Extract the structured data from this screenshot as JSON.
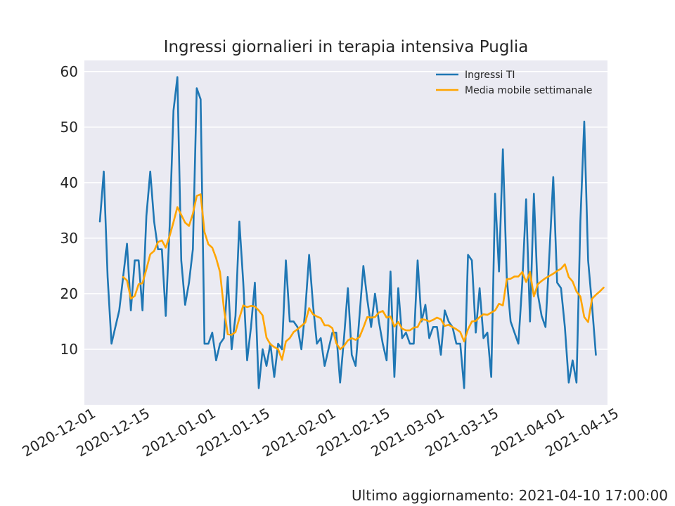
{
  "chart_data": {
    "type": "line",
    "title": "Ingressi giornalieri in terapia intensiva Puglia",
    "xlabel": "",
    "ylabel": "",
    "xlim": [
      "2020-12-01",
      "2021-04-15"
    ],
    "ylim": [
      0,
      62
    ],
    "x_ticks": [
      "2020-12-01",
      "2020-12-15",
      "2021-01-01",
      "2021-01-15",
      "2021-02-01",
      "2021-02-15",
      "2021-03-01",
      "2021-03-15",
      "2021-04-01",
      "2021-04-15"
    ],
    "y_ticks": [
      10,
      20,
      30,
      40,
      50,
      60
    ],
    "grid": true,
    "legend_position": "top-right",
    "series": [
      {
        "name": "Ingressi TI",
        "color": "#1f77b4",
        "start_date": "2020-12-05",
        "values": [
          33,
          42,
          23,
          11,
          14,
          17,
          23,
          29,
          17,
          26,
          26,
          17,
          34,
          42,
          33,
          28,
          28,
          16,
          32,
          53,
          59,
          26,
          18,
          22,
          28,
          57,
          55,
          11,
          11,
          13,
          8,
          11,
          12,
          23,
          10,
          16,
          33,
          22,
          8,
          14,
          22,
          3,
          10,
          7,
          11,
          5,
          11,
          10,
          26,
          15,
          15,
          14,
          10,
          17,
          27,
          18,
          11,
          12,
          7,
          10,
          13,
          13,
          4,
          12,
          21,
          9,
          7,
          16,
          25,
          19,
          14,
          20,
          15,
          11,
          8,
          24,
          5,
          21,
          12,
          13,
          11,
          11,
          26,
          15,
          18,
          12,
          14,
          14,
          9,
          17,
          15,
          14,
          11,
          11,
          3,
          27,
          26,
          13,
          21,
          12,
          13,
          5,
          38,
          24,
          46,
          23,
          15,
          13,
          11,
          22,
          37,
          15,
          38,
          20,
          16,
          14,
          27,
          41,
          22,
          21,
          14,
          4,
          8,
          4,
          33,
          51,
          26,
          18,
          9
        ]
      },
      {
        "name": "Media mobile settimanale",
        "color": "#ffa500",
        "start_date": "2020-12-11",
        "values": [
          23,
          22.4,
          19.1,
          19.6,
          21.7,
          21.9,
          24.4,
          27.1,
          27.7,
          29.3,
          29.6,
          28.3,
          30.4,
          32.9,
          35.6,
          34.2,
          32.8,
          32.2,
          34.4,
          37.6,
          37.9,
          31.1,
          28.9,
          28.3,
          26.4,
          23.9,
          17.4,
          12.7,
          12.6,
          13.1,
          15.6,
          17.9,
          17.6,
          17.8,
          17.7,
          17.0,
          16.1,
          12.1,
          10.9,
          10.4,
          10.0,
          8.1,
          11.4,
          12.0,
          13.1,
          13.6,
          14.2,
          14.8,
          17.4,
          16.3,
          15.9,
          15.6,
          14.3,
          14.3,
          13.8,
          11.1,
          10.0,
          10.6,
          11.6,
          12.0,
          11.7,
          12.2,
          13.9,
          15.8,
          15.7,
          15.8,
          16.6,
          16.9,
          15.7,
          15.9,
          14.1,
          14.9,
          13.7,
          13.4,
          13.4,
          13.9,
          14.0,
          15.4,
          15.3,
          15.0,
          15.3,
          15.7,
          15.4,
          14.2,
          14.4,
          14.0,
          13.6,
          13.1,
          11.4,
          13.6,
          15.0,
          15.1,
          15.8,
          16.3,
          16.2,
          16.6,
          17.0,
          18.2,
          17.9,
          22.6,
          22.7,
          23.1,
          23.1,
          23.9,
          22.1,
          23.9,
          19.5,
          21.7,
          22.3,
          22.8,
          23.2,
          23.6,
          24.1,
          24.5,
          25.3,
          23.0,
          22.2,
          20.4,
          19.5,
          15.8,
          14.9,
          19.1,
          19.8,
          20.4,
          21.1
        ]
      }
    ]
  },
  "footer": {
    "text": "Ultimo aggiornamento: 2021-04-10 17:00:00"
  }
}
